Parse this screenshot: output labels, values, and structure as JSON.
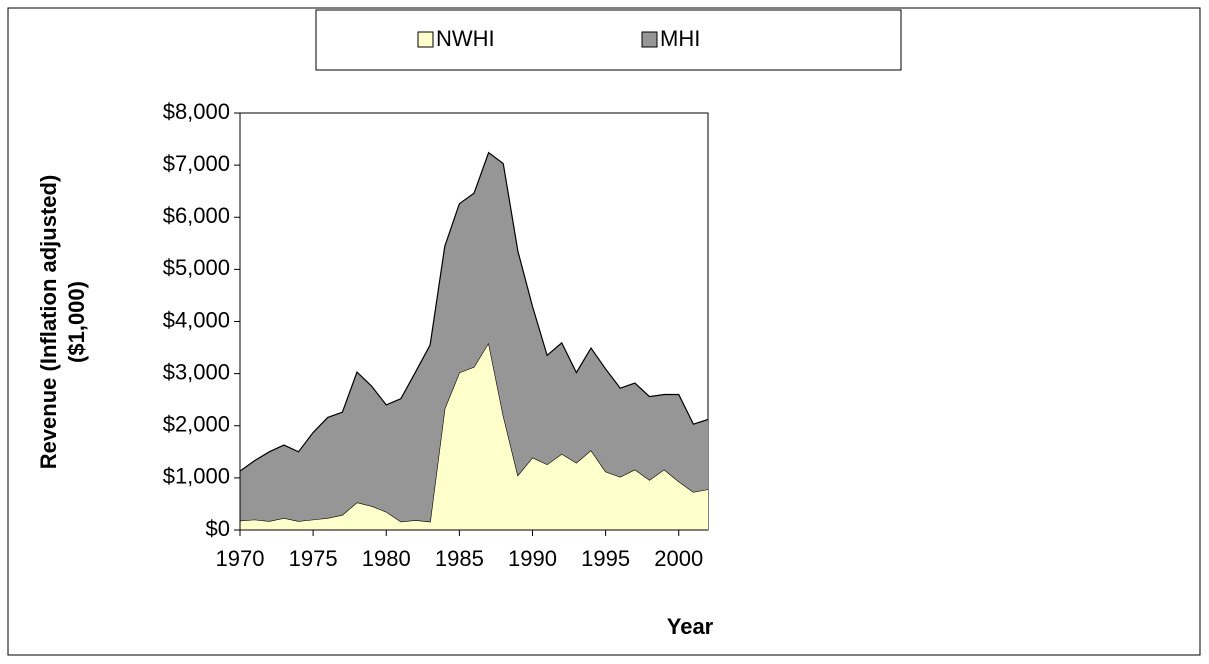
{
  "chart_data": {
    "type": "stacked-area",
    "xlabel": "Year",
    "ylabel": [
      "Revenue (Inflation adjusted)",
      "($1,000)"
    ],
    "x": [
      1970,
      1971,
      1972,
      1973,
      1974,
      1975,
      1976,
      1977,
      1978,
      1979,
      1980,
      1981,
      1982,
      1983,
      1984,
      1985,
      1986,
      1987,
      1988,
      1989,
      1990,
      1991,
      1992,
      1993,
      1994,
      1995,
      1996,
      1997,
      1998,
      1999,
      2000,
      2001,
      2002
    ],
    "series": [
      {
        "name": "NWHI",
        "color": "#ffffcc",
        "values": [
          180,
          200,
          170,
          230,
          170,
          200,
          230,
          290,
          530,
          460,
          350,
          160,
          190,
          160,
          2330,
          3020,
          3130,
          3590,
          2200,
          1050,
          1390,
          1260,
          1460,
          1290,
          1530,
          1120,
          1020,
          1160,
          960,
          1160,
          930,
          730,
          780
        ]
      },
      {
        "name": "MHI",
        "color": "#969696",
        "values": [
          950,
          1130,
          1330,
          1400,
          1330,
          1670,
          1930,
          1970,
          2500,
          2300,
          2050,
          2360,
          2840,
          3390,
          3110,
          3240,
          3330,
          3650,
          4830,
          4300,
          2900,
          2090,
          2130,
          1730,
          1960,
          1970,
          1700,
          1660,
          1600,
          1440,
          1670,
          1300,
          1340
        ]
      }
    ],
    "xlim": [
      1970,
      2002
    ],
    "xticks": [
      1970,
      1975,
      1980,
      1985,
      1990,
      1995,
      2000
    ],
    "ylim": [
      0,
      8000
    ],
    "yticks": [
      {
        "value": 0,
        "label": "$0"
      },
      {
        "value": 1000,
        "label": "$1,000"
      },
      {
        "value": 2000,
        "label": "$2,000"
      },
      {
        "value": 3000,
        "label": "$3,000"
      },
      {
        "value": 4000,
        "label": "$4,000"
      },
      {
        "value": 5000,
        "label": "$5,000"
      },
      {
        "value": 6000,
        "label": "$6,000"
      },
      {
        "value": 7000,
        "label": "$7,000"
      },
      {
        "value": 8000,
        "label": "$8,000"
      }
    ],
    "legend": "top"
  }
}
